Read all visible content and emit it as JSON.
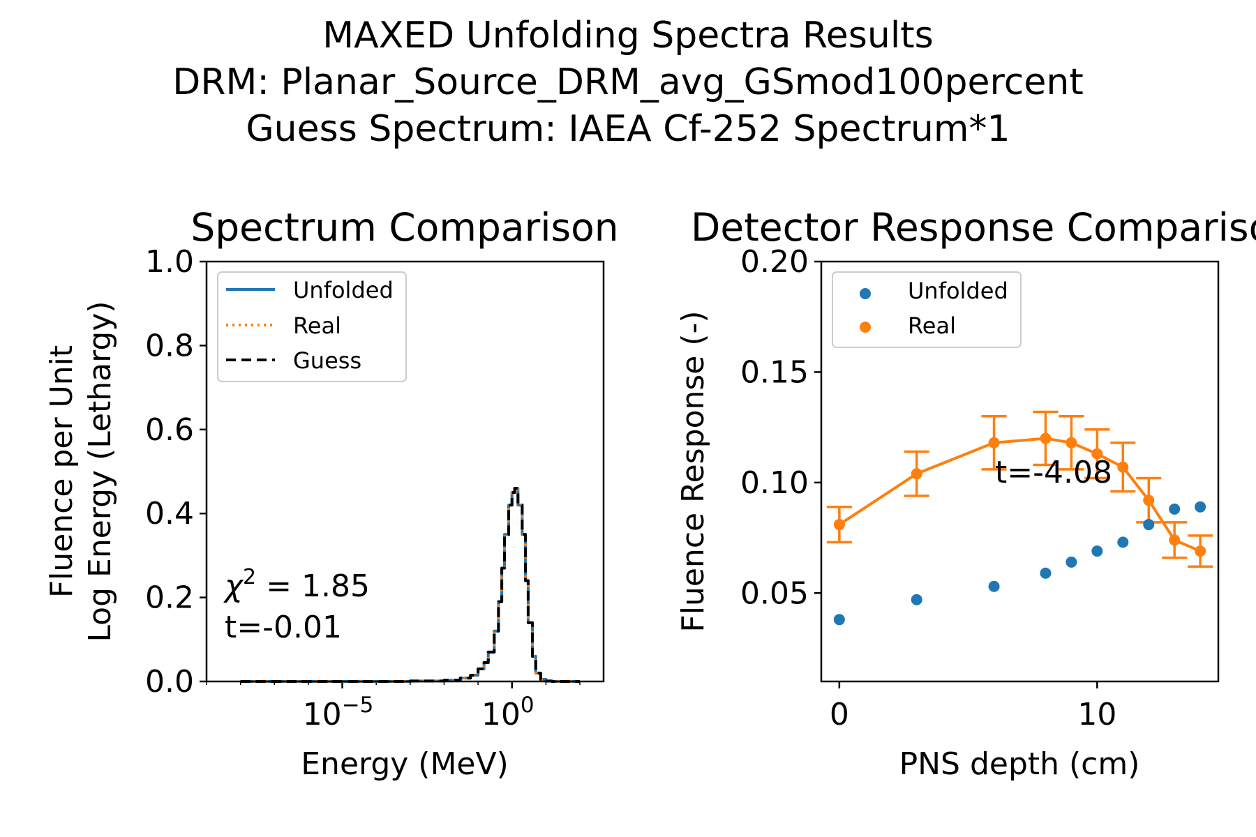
{
  "figure": {
    "suptitle_lines": [
      "MAXED Unfolding Spectra Results",
      "DRM: Planar_Source_DRM_avg_GSmod100percent",
      "Guess Spectrum: IAEA Cf-252 Spectrum*1"
    ]
  },
  "colors": {
    "unfolded": "#1f77b4",
    "real": "#ff7f0e",
    "guess": "#000000"
  },
  "chart_data": [
    {
      "type": "line",
      "title": "Spectrum Comparison",
      "xlabel": "Energy (MeV)",
      "ylabel_lines": [
        "Fluence per Unit",
        "Log Energy (Lethargy)"
      ],
      "xscale": "log",
      "xlim": [
        1e-09,
        500
      ],
      "ylim": [
        0,
        1.0
      ],
      "yticks": [
        "0.0",
        "0.2",
        "0.4",
        "0.6",
        "0.8",
        "1.0"
      ],
      "xticks": [
        {
          "base": "10",
          "exp": "−5",
          "value": 1e-05
        },
        {
          "base": "10",
          "exp": "0",
          "value": 1
        }
      ],
      "legend": {
        "placement": "top-left",
        "entries": [
          "Unfolded",
          "Real",
          "Guess"
        ]
      },
      "annotation_lines": [
        "χ² = 1.85",
        "t=-0.01"
      ],
      "series": [
        {
          "name": "Unfolded",
          "style": "solid",
          "x": [
            1e-08,
            1e-06,
            0.0001,
            0.001,
            0.01,
            0.03,
            0.06,
            0.1,
            0.15,
            0.2,
            0.3,
            0.4,
            0.5,
            0.6,
            0.8,
            1.0,
            1.2,
            1.5,
            2.0,
            2.5,
            3.0,
            4.0,
            5.0,
            7.0,
            10.0,
            15.0,
            30.0,
            100.0
          ],
          "y": [
            0,
            0,
            0,
            0.001,
            0.003,
            0.008,
            0.015,
            0.03,
            0.045,
            0.07,
            0.12,
            0.19,
            0.27,
            0.35,
            0.42,
            0.45,
            0.46,
            0.42,
            0.35,
            0.24,
            0.14,
            0.06,
            0.02,
            0.005,
            0.001,
            0,
            0,
            0
          ]
        },
        {
          "name": "Real",
          "style": "dotted",
          "x": [
            1e-08,
            1e-06,
            0.0001,
            0.001,
            0.01,
            0.03,
            0.06,
            0.1,
            0.15,
            0.2,
            0.3,
            0.4,
            0.5,
            0.6,
            0.8,
            1.0,
            1.2,
            1.5,
            2.0,
            2.5,
            3.0,
            4.0,
            5.0,
            7.0,
            10.0,
            15.0,
            30.0,
            100.0
          ],
          "y": [
            0,
            0,
            0,
            0.001,
            0.003,
            0.008,
            0.015,
            0.03,
            0.045,
            0.07,
            0.12,
            0.19,
            0.27,
            0.35,
            0.42,
            0.45,
            0.46,
            0.42,
            0.35,
            0.24,
            0.14,
            0.06,
            0.02,
            0.005,
            0.001,
            0,
            0,
            0
          ]
        },
        {
          "name": "Guess",
          "style": "dashed",
          "x": [
            1e-08,
            1e-06,
            0.0001,
            0.001,
            0.01,
            0.03,
            0.06,
            0.1,
            0.15,
            0.2,
            0.3,
            0.4,
            0.5,
            0.6,
            0.8,
            1.0,
            1.2,
            1.5,
            2.0,
            2.5,
            3.0,
            4.0,
            5.0,
            7.0,
            10.0,
            15.0,
            30.0,
            100.0
          ],
          "y": [
            0,
            0,
            0,
            0.001,
            0.003,
            0.008,
            0.015,
            0.03,
            0.045,
            0.07,
            0.12,
            0.19,
            0.27,
            0.35,
            0.42,
            0.45,
            0.46,
            0.42,
            0.35,
            0.24,
            0.14,
            0.06,
            0.02,
            0.005,
            0.001,
            0,
            0,
            0
          ]
        }
      ]
    },
    {
      "type": "scatter",
      "title": "Detector Response Comparison",
      "xlabel": "PNS depth (cm)",
      "ylabel": "Fluence Response (-)",
      "xlim": [
        -0.7,
        14.7
      ],
      "ylim": [
        0.01,
        0.2
      ],
      "yticks": [
        "0.05",
        "0.10",
        "0.15",
        "0.20"
      ],
      "xticks": [
        "0",
        "10"
      ],
      "legend": {
        "placement": "top-left",
        "entries": [
          "Unfolded",
          "Real"
        ]
      },
      "annotation": "t=-4.08",
      "series": [
        {
          "name": "Unfolded",
          "x": [
            0,
            3,
            6,
            8,
            9,
            10,
            11,
            12,
            13,
            14
          ],
          "y": [
            0.038,
            0.047,
            0.053,
            0.059,
            0.064,
            0.069,
            0.073,
            0.081,
            0.088,
            0.089
          ]
        },
        {
          "name": "Real",
          "x": [
            0,
            3,
            6,
            8,
            9,
            10,
            11,
            12,
            13,
            14
          ],
          "y": [
            0.081,
            0.104,
            0.118,
            0.12,
            0.118,
            0.113,
            0.107,
            0.092,
            0.074,
            0.069
          ],
          "yerr": [
            0.008,
            0.01,
            0.012,
            0.012,
            0.012,
            0.011,
            0.011,
            0.01,
            0.008,
            0.007
          ]
        }
      ]
    }
  ]
}
